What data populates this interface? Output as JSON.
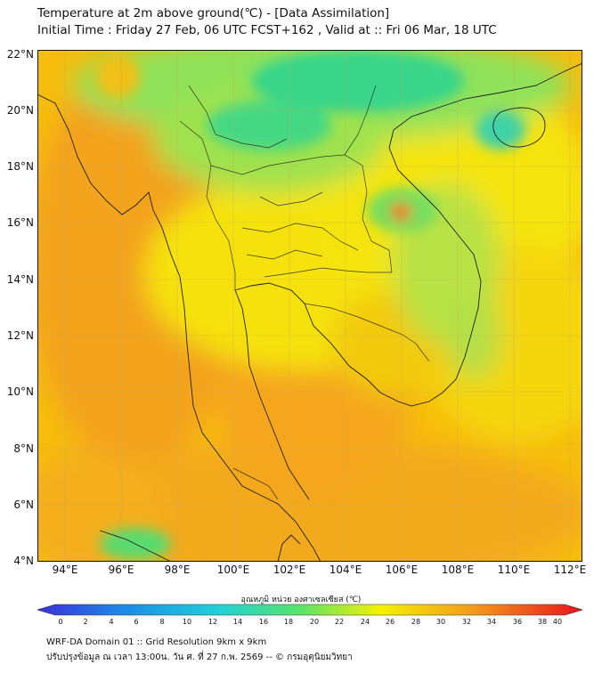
{
  "header": {
    "title": "Temperature at 2m above ground(℃) - [Data Assimilation]",
    "subtitle": "Initial Time : Friday 27 Feb, 06 UTC FCST+162 , Valid at :: Fri 06 Mar, 18 UTC"
  },
  "map": {
    "lat_labels": [
      "22°N",
      "20°N",
      "18°N",
      "16°N",
      "14°N",
      "12°N",
      "10°N",
      "8°N",
      "6°N",
      "4°N"
    ],
    "lon_labels": [
      "94°E",
      "96°E",
      "98°E",
      "100°E",
      "102°E",
      "104°E",
      "106°E",
      "108°E",
      "110°E",
      "112°E"
    ]
  },
  "colorbar": {
    "title": "อุณหภูมิ หน่วย องศาเซลเซียส (℃)",
    "ticks": [
      "0",
      "2",
      "4",
      "6",
      "8",
      "10",
      "12",
      "14",
      "16",
      "18",
      "20",
      "22",
      "24",
      "26",
      "28",
      "30",
      "32",
      "34",
      "36",
      "38",
      "40"
    ],
    "colors": {
      "low": "#3a2fd6",
      "mid_low": "#1fd0d9",
      "mid": "#58e36a",
      "warm": "#f5f200",
      "hot": "#f39a1c",
      "max": "#e8141e"
    }
  },
  "footer": {
    "line1": "WRF-DA Domain 01 :: Grid Resolution 9km x 9km",
    "line2": "ปรับปรุงข้อมูล ณ เวลา 13:00น. วัน ศ. ที่ 27 ก.พ. 2569 -- © กรมอุตุนิยมวิทยา"
  }
}
